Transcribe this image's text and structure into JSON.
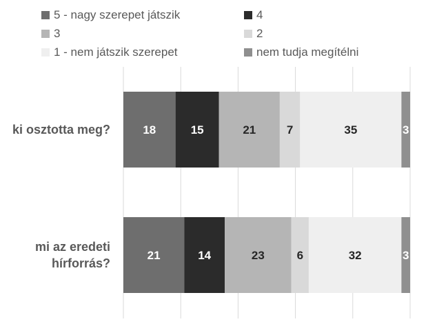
{
  "chart_data": {
    "type": "bar",
    "orientation": "horizontal",
    "stacked": true,
    "percent_stacked": true,
    "categories": [
      "ki osztotta meg?",
      "mi az eredeti hírforrás?"
    ],
    "series": [
      {
        "name": "5 - nagy szerepet játszik",
        "values": [
          18,
          21
        ],
        "color": "#6e6e6e",
        "label_color": "#ffffff"
      },
      {
        "name": "4",
        "values": [
          15,
          14
        ],
        "color": "#2b2b2b",
        "label_color": "#ffffff"
      },
      {
        "name": "3",
        "values": [
          21,
          23
        ],
        "color": "#b5b5b5",
        "label_color": "#262626"
      },
      {
        "name": "2",
        "values": [
          7,
          6
        ],
        "color": "#d9d9d9",
        "label_color": "#262626"
      },
      {
        "name": "1 - nem játszik szerepet",
        "values": [
          35,
          32
        ],
        "color": "#efefef",
        "label_color": "#262626"
      },
      {
        "name": "nem tudja megítélni",
        "values": [
          3,
          3
        ],
        "color": "#8f8f8f",
        "label_color": "#ffffff"
      }
    ],
    "title": "",
    "xlabel": "",
    "ylabel": "",
    "legend_position": "top",
    "grid": true
  }
}
